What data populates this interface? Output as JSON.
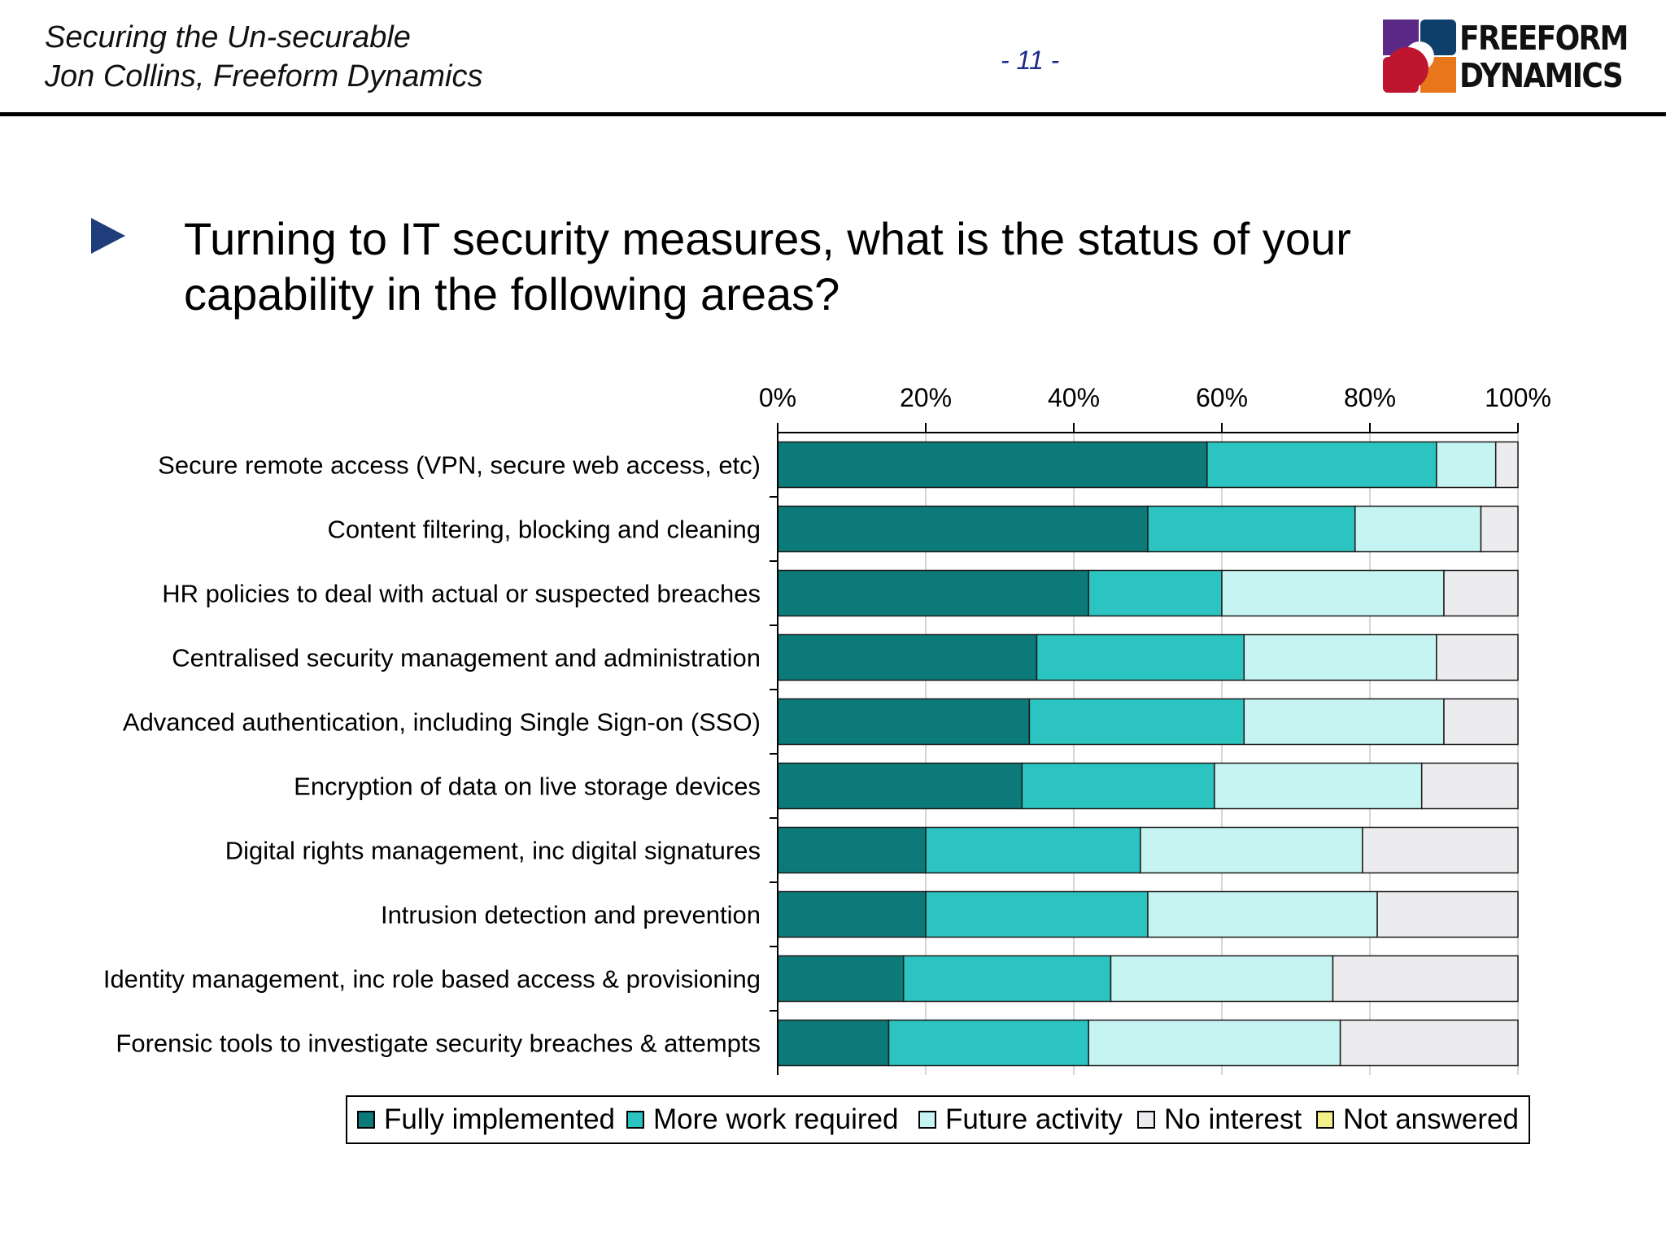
{
  "header": {
    "title_line1": "Securing the Un-securable",
    "title_line2": "Jon Collins, Freeform Dynamics",
    "page_number": "- 11 -"
  },
  "logo": {
    "line1": "FREEFORM",
    "line2": "DYNAMICS",
    "colors": [
      "#5b2a86",
      "#0e3f6b",
      "#c0152f",
      "#e8771c"
    ]
  },
  "bullet": {
    "icon": "triangle-right-bullet-icon",
    "color": "#1f3d7a",
    "text": "Turning to IT security measures, what is the status of your capability in the following areas?"
  },
  "chart_data": {
    "type": "bar",
    "orientation": "horizontal",
    "stacked": true,
    "percent": true,
    "title": "",
    "xlabel": "",
    "ylabel": "",
    "xlim": [
      0,
      100
    ],
    "x_ticks": [
      "0%",
      "20%",
      "40%",
      "60%",
      "80%",
      "100%"
    ],
    "x_axis_position": "top",
    "grid": true,
    "legend_position": "bottom",
    "categories": [
      "Secure remote access (VPN, secure web access, etc)",
      "Content filtering, blocking and cleaning",
      "HR policies to deal with actual or suspected breaches",
      "Centralised security management and administration",
      "Advanced authentication, including Single Sign-on (SSO)",
      "Encryption of data on live storage devices",
      "Digital rights management, inc digital signatures",
      "Intrusion detection and prevention",
      "Identity management, inc role based access & provisioning",
      "Forensic tools to investigate security breaches & attempts"
    ],
    "series": [
      {
        "name": "Fully implemented",
        "color": "#0c7a78",
        "values": [
          58,
          50,
          42,
          35,
          34,
          33,
          20,
          20,
          17,
          15
        ]
      },
      {
        "name": "More work required",
        "color": "#2cc4c0",
        "values": [
          31,
          28,
          18,
          28,
          29,
          26,
          29,
          30,
          28,
          27
        ]
      },
      {
        "name": "Future activity",
        "color": "#c6f4f2",
        "values": [
          8,
          17,
          30,
          26,
          27,
          28,
          30,
          31,
          30,
          34
        ]
      },
      {
        "name": "No interest",
        "color": "#ececef",
        "values": [
          3,
          5,
          10,
          11,
          10,
          13,
          21,
          19,
          25,
          24
        ]
      },
      {
        "name": "Not answered",
        "color": "#f3f08c",
        "values": [
          0,
          0,
          0,
          0,
          0,
          0,
          0,
          0,
          0,
          0
        ]
      }
    ]
  }
}
